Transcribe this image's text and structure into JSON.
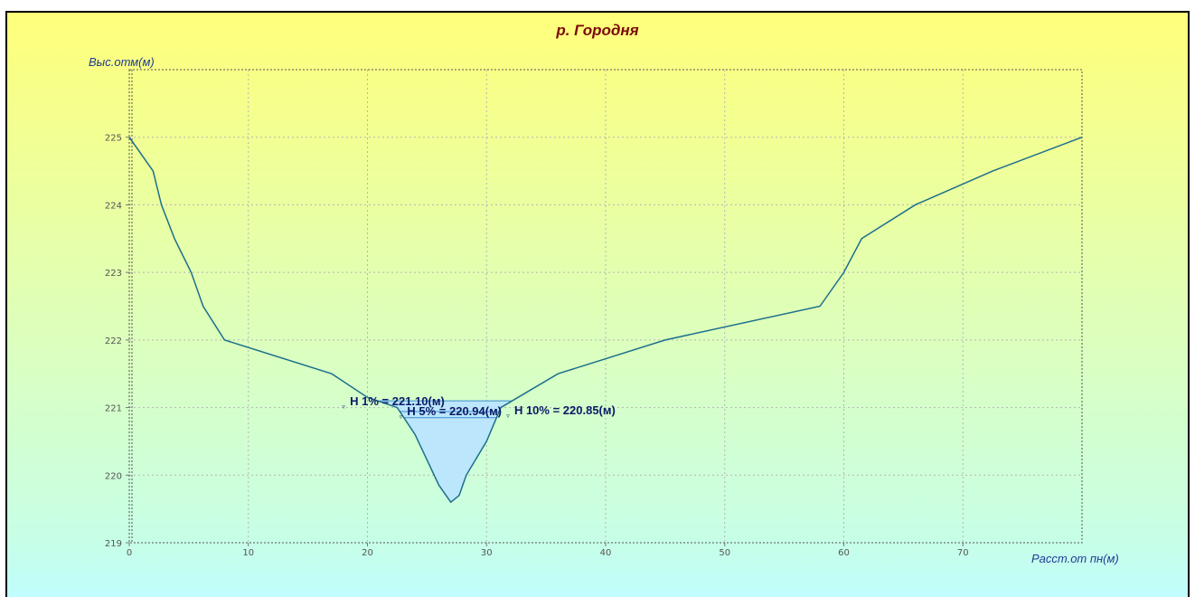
{
  "chart_data": {
    "type": "area",
    "title": "р. Городня",
    "xlabel": "Расст.от пн(м)",
    "ylabel": "Выс.отм(м)",
    "xlim": [
      0,
      80
    ],
    "ylim": [
      219,
      226
    ],
    "xticks": [
      0,
      10,
      20,
      30,
      40,
      50,
      60,
      70
    ],
    "yticks": [
      219,
      220,
      221,
      222,
      223,
      224,
      225
    ],
    "grid": true,
    "colors": {
      "profile": "#1c6f8c",
      "water": "#bce6fb",
      "water_line": "#3a8fd0",
      "title": "#7b0a0a"
    },
    "profile": {
      "x": [
        0,
        2,
        2.7,
        3.8,
        5.2,
        6.2,
        8,
        17,
        20,
        22.5,
        24,
        26,
        27,
        27.7,
        28.3,
        30,
        31.2,
        36,
        45,
        58,
        60,
        61.5,
        66,
        72.5,
        80
      ],
      "y": [
        225,
        224.5,
        224,
        223.5,
        223,
        222.5,
        222,
        221.5,
        221.15,
        221,
        220.6,
        219.85,
        219.6,
        219.7,
        220,
        220.5,
        221,
        221.5,
        222,
        222.5,
        223,
        223.5,
        224,
        224.5,
        225
      ]
    },
    "water_levels": [
      {
        "label": "H 1% = 221.10(м)",
        "value": 221.1
      },
      {
        "label": "H 5% = 220.94(м)",
        "value": 220.94
      },
      {
        "label": "H 10% = 220.85(м)",
        "value": 220.85
      }
    ]
  }
}
